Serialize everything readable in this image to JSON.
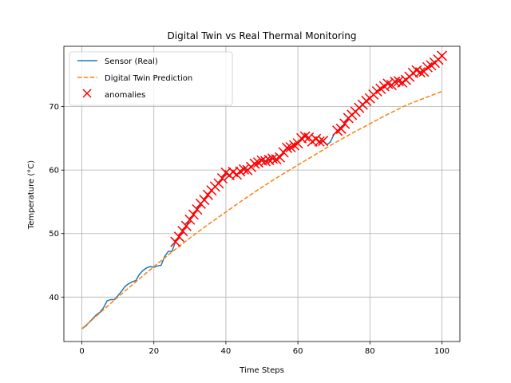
{
  "chart_data": {
    "type": "line",
    "title": "Digital Twin vs Real Thermal Monitoring",
    "xlabel": "Time Steps",
    "ylabel": "Temperature (°C)",
    "xlim": [
      -5,
      105
    ],
    "ylim": [
      33,
      79.5
    ],
    "xticks": [
      0,
      20,
      40,
      60,
      80,
      100
    ],
    "yticks": [
      40,
      50,
      60,
      70
    ],
    "grid": true,
    "legend_position": "upper-left",
    "series": [
      {
        "name": "Sensor (Real)",
        "style": "solid",
        "color": "#1f77b4",
        "x": [
          0,
          1,
          2,
          3,
          4,
          5,
          6,
          7,
          8,
          9,
          10,
          11,
          12,
          13,
          14,
          15,
          16,
          17,
          18,
          19,
          20,
          21,
          22,
          23,
          24,
          25,
          26,
          27,
          28,
          29,
          30,
          31,
          32,
          33,
          34,
          35,
          36,
          37,
          38,
          39,
          40,
          41,
          42,
          43,
          44,
          45,
          46,
          47,
          48,
          49,
          50,
          51,
          52,
          53,
          54,
          55,
          56,
          57,
          58,
          59,
          60,
          61,
          62,
          63,
          64,
          65,
          66,
          67,
          68,
          69,
          70,
          71,
          72,
          73,
          74,
          75,
          76,
          77,
          78,
          79,
          80,
          81,
          82,
          83,
          84,
          85,
          86,
          87,
          88,
          89,
          90,
          91,
          92,
          93,
          94,
          95,
          96,
          97,
          98,
          99,
          100
        ],
        "values": [
          35.0,
          35.4,
          36.0,
          36.6,
          37.2,
          37.6,
          38.3,
          39.4,
          39.6,
          39.6,
          40.2,
          40.9,
          41.7,
          42.1,
          42.4,
          42.6,
          43.6,
          44.2,
          44.6,
          44.8,
          44.7,
          44.9,
          45.0,
          46.4,
          47.2,
          47.2,
          48.7,
          49.5,
          50.4,
          51.2,
          52.2,
          53.0,
          53.8,
          54.7,
          55.3,
          56.1,
          56.8,
          57.4,
          57.9,
          58.7,
          59.6,
          59.2,
          59.7,
          59.3,
          59.8,
          60.1,
          60.0,
          60.5,
          61.0,
          61.2,
          61.5,
          61.4,
          61.6,
          61.8,
          61.7,
          62.0,
          62.8,
          63.5,
          63.6,
          63.9,
          64.2,
          65.0,
          65.3,
          65.1,
          64.5,
          64.9,
          64.5,
          64.6,
          64.0,
          64.4,
          65.6,
          66.2,
          66.5,
          67.3,
          68.2,
          68.7,
          69.2,
          69.8,
          70.3,
          70.9,
          71.3,
          71.9,
          72.4,
          72.8,
          73.2,
          73.6,
          73.4,
          73.9,
          74.0,
          73.8,
          74.2,
          74.7,
          75.3,
          75.7,
          75.4,
          75.5,
          76.2,
          76.5,
          76.9,
          77.4,
          78.0
        ]
      },
      {
        "name": "Digital Twin Prediction",
        "style": "dashed",
        "color": "#ff7f0e",
        "x": [
          0,
          5,
          10,
          15,
          20,
          25,
          30,
          35,
          40,
          45,
          50,
          55,
          60,
          65,
          70,
          75,
          80,
          85,
          90,
          95,
          100
        ],
        "values": [
          35.0,
          37.5,
          40.0,
          42.4,
          44.8,
          47.1,
          49.3,
          51.4,
          53.4,
          55.4,
          57.3,
          59.1,
          60.8,
          62.5,
          64.2,
          65.8,
          67.3,
          68.8,
          70.2,
          71.3,
          72.4
        ]
      }
    ],
    "anomalies": {
      "name": "anomalies",
      "marker": "x",
      "color": "#ff0000",
      "x": [
        26,
        27,
        28,
        29,
        30,
        31,
        32,
        33,
        34,
        35,
        36,
        37,
        38,
        39,
        40,
        41,
        42,
        43,
        44,
        45,
        46,
        47,
        48,
        49,
        50,
        51,
        52,
        53,
        54,
        55,
        56,
        57,
        58,
        59,
        60,
        61,
        62,
        63,
        64,
        65,
        66,
        67,
        71,
        72,
        73,
        74,
        75,
        76,
        77,
        78,
        79,
        80,
        81,
        82,
        83,
        84,
        85,
        86,
        87,
        88,
        89,
        90,
        91,
        92,
        93,
        94,
        95,
        96,
        97,
        98,
        99,
        100
      ],
      "values": [
        48.7,
        49.5,
        50.4,
        51.2,
        52.2,
        53.0,
        53.8,
        54.7,
        55.3,
        56.1,
        56.8,
        57.4,
        57.9,
        58.7,
        59.6,
        59.2,
        59.7,
        59.3,
        59.8,
        60.1,
        60.0,
        60.5,
        61.0,
        61.2,
        61.5,
        61.4,
        61.6,
        61.8,
        61.7,
        62.0,
        62.8,
        63.5,
        63.6,
        63.9,
        64.2,
        65.0,
        65.3,
        65.1,
        64.5,
        64.9,
        64.5,
        64.6,
        66.2,
        66.5,
        67.3,
        68.2,
        68.7,
        69.2,
        69.8,
        70.3,
        70.9,
        71.3,
        71.9,
        72.4,
        72.8,
        73.2,
        73.6,
        73.4,
        73.9,
        74.0,
        73.8,
        74.2,
        74.7,
        75.3,
        75.7,
        75.4,
        75.5,
        76.2,
        76.5,
        76.9,
        77.4,
        78.0
      ]
    }
  }
}
